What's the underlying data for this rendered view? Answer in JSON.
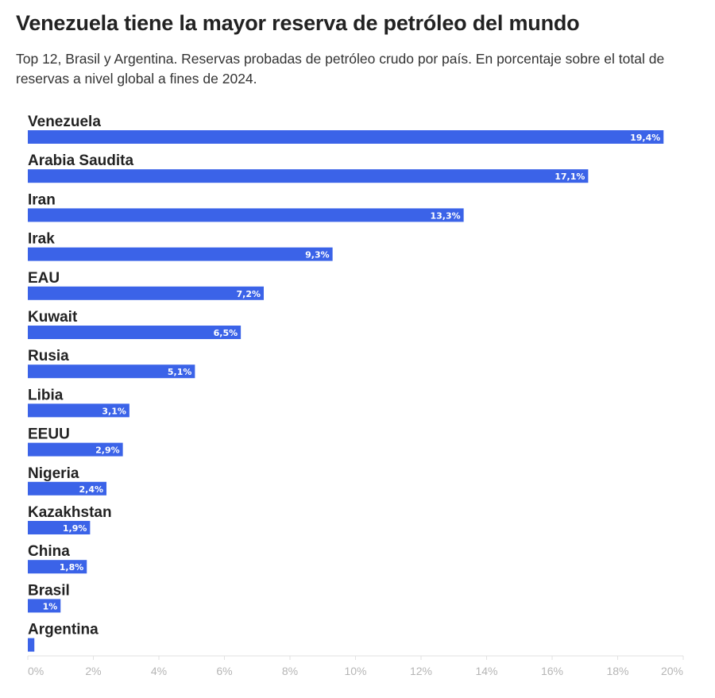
{
  "header": {
    "title": "Venezuela tiene la mayor reserva de petróleo del mundo",
    "subtitle": "Top 12, Brasil y Argentina. Reservas probadas de petróleo crudo por país. En porcentaje sobre el total de reservas a nivel global a fines de 2024."
  },
  "colors": {
    "bar": "#3b63e8",
    "value_text": "#ffffff",
    "tick_text": "#b5b5b5",
    "axis_line": "#e2e2e2"
  },
  "chart_data": {
    "type": "bar",
    "orientation": "horizontal",
    "title": "Venezuela tiene la mayor reserva de petróleo del mundo",
    "subtitle": "Top 12, Brasil y Argentina. Reservas probadas de petróleo crudo por país. En porcentaje sobre el total de reservas a nivel global a fines de 2024.",
    "categories": [
      "Venezuela",
      "Arabia Saudita",
      "Iran",
      "Irak",
      "EAU",
      "Kuwait",
      "Rusia",
      "Libia",
      "EEUU",
      "Nigeria",
      "Kazakhstan",
      "China",
      "Brasil",
      "Argentina"
    ],
    "values": [
      19.4,
      17.1,
      13.3,
      9.3,
      7.2,
      6.5,
      5.1,
      3.1,
      2.9,
      2.4,
      1.9,
      1.8,
      1.0,
      0.2
    ],
    "value_labels": [
      "19,4%",
      "17,1%",
      "13,3%",
      "9,3%",
      "7,2%",
      "6,5%",
      "5,1%",
      "3,1%",
      "2,9%",
      "2,4%",
      "1,9%",
      "1,8%",
      "1%",
      ""
    ],
    "xlim": [
      0,
      20
    ],
    "ticks": [
      0,
      2,
      4,
      6,
      8,
      10,
      12,
      14,
      16,
      18,
      20
    ],
    "tick_labels": [
      "0%",
      "2%",
      "4%",
      "6%",
      "8%",
      "10%",
      "12%",
      "14%",
      "16%",
      "18%",
      "20%"
    ],
    "xlabel": "",
    "ylabel": "",
    "grid": false,
    "legend": "none"
  }
}
